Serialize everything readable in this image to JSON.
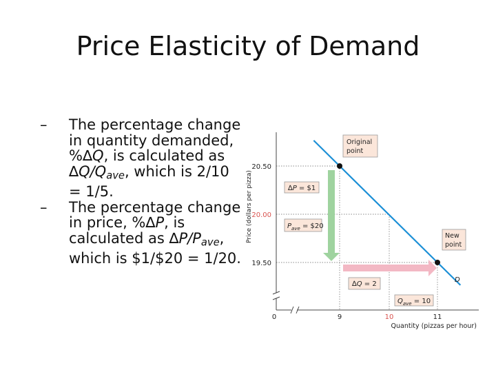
{
  "slide": {
    "title": "Price Elasticity of Demand"
  },
  "bullets": [
    {
      "dash": "–",
      "parts": [
        {
          "t": "The percentage change in quantity demanded, %"
        },
        {
          "t": "∆"
        },
        {
          "t": "Q",
          "i": true
        },
        {
          "t": ", is calculated as "
        },
        {
          "t": "∆"
        },
        {
          "t": "Q/Q",
          "i": true
        },
        {
          "t": "ave",
          "i": true,
          "sub": true
        },
        {
          "t": ", which is 2/10 = 1/5."
        }
      ]
    },
    {
      "dash": "–",
      "parts": [
        {
          "t": "The percentage change in price, %"
        },
        {
          "t": "∆"
        },
        {
          "t": "P",
          "i": true
        },
        {
          "t": ", is calculated as "
        },
        {
          "t": "∆"
        },
        {
          "t": "P/P",
          "i": true
        },
        {
          "t": "ave",
          "i": true,
          "sub": true
        },
        {
          "t": ", which is $1/$20 = 1/20."
        }
      ]
    }
  ],
  "chart_data": {
    "type": "line",
    "title": "",
    "xlabel": "Quantity (pizzas per hour)",
    "ylabel": "Price (dollars per pizza)",
    "x_ticks": [
      "0",
      "9",
      "10",
      "11"
    ],
    "y_ticks": [
      "19.50",
      "20.00",
      "20.50"
    ],
    "highlighted_ticks": [
      "10",
      "20.00"
    ],
    "series": [
      {
        "name": "D",
        "x": [
          8.47,
          11.47
        ],
        "y": [
          20.765,
          19.265
        ]
      }
    ],
    "points": [
      {
        "label": "Original point",
        "x": 9,
        "y": 20.5
      },
      {
        "label": "New point",
        "x": 11,
        "y": 19.5
      }
    ],
    "annotations": {
      "delta_p": {
        "symbol": "∆",
        "var": "P",
        "rest": " = $1"
      },
      "p_ave": {
        "var": "P",
        "sub": "ave",
        "rest": " = $20"
      },
      "delta_q": {
        "symbol": "∆",
        "var": "Q",
        "rest": " = 2"
      },
      "q_ave": {
        "var": "Q",
        "sub": "ave",
        "rest": " = 10"
      }
    },
    "axis_break": true,
    "grid": false,
    "colors": {
      "demand": "#1b8fd6",
      "price_arrow": "#9fd39f",
      "quantity_arrow": "#f3b8c4",
      "highlight": "#d9534f",
      "box_fill": "#fbe6da"
    }
  }
}
